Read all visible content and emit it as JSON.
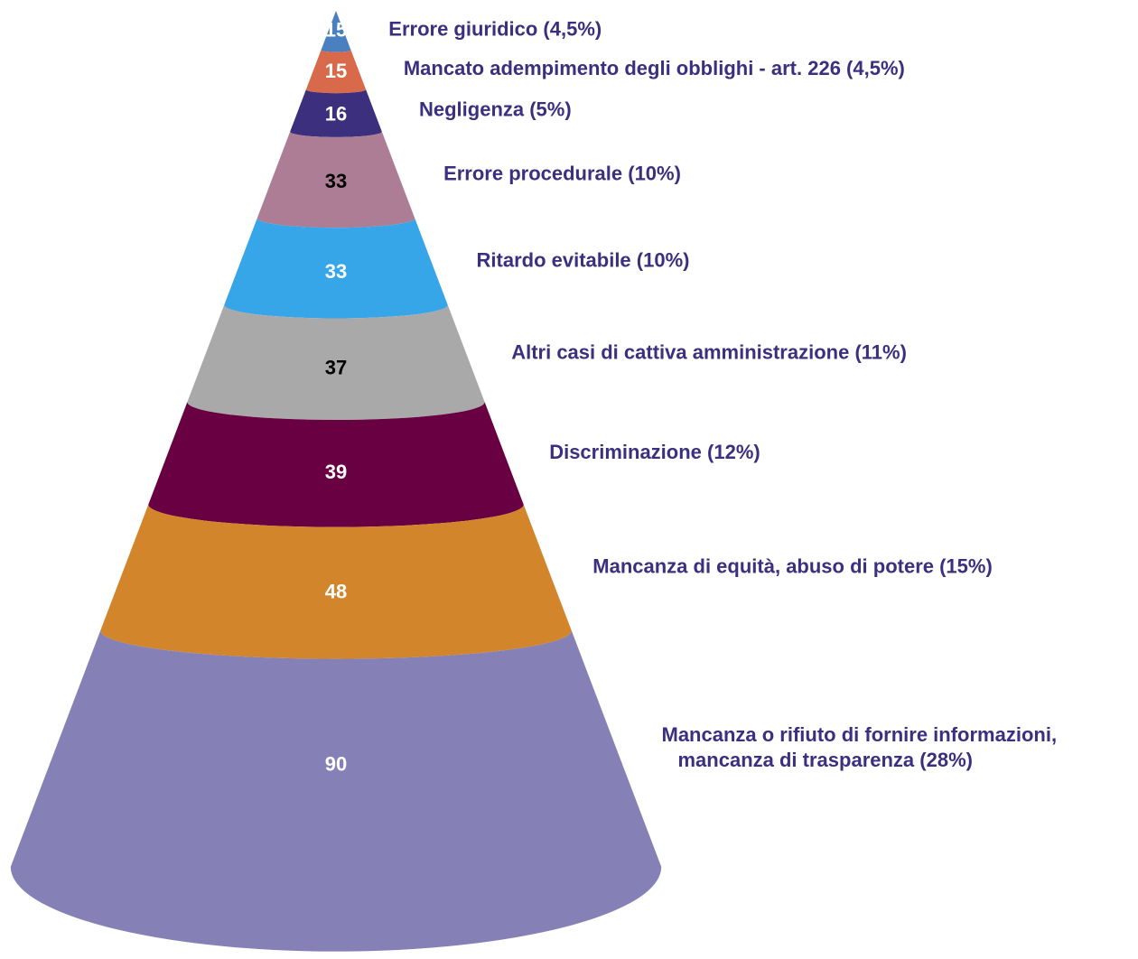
{
  "chart_data": {
    "type": "cone",
    "categories": [
      "Errore giuridico (4,5%)",
      "Mancato adempimento degli obblighi - art. 226 (4,5%)",
      "Negligenza (5%)",
      "Errore procedurale (10%)",
      "Ritardo evitabile (10%)",
      "Altri casi di cattiva amministrazione (11%)",
      "Discriminazione  (12%)",
      "Mancanza di equità, abuso di potere (15%)",
      [
        "Mancanza o rifiuto di fornire informazioni,",
        "mancanza di trasparenza (28%)"
      ]
    ],
    "values": [
      15,
      15,
      16,
      33,
      33,
      37,
      39,
      48,
      90
    ],
    "colors": [
      "#4a7fc0",
      "#d8694a",
      "#3b2f7e",
      "#ad7c95",
      "#37a6e8",
      "#a9a9a9",
      "#680042",
      "#d3852b",
      "#8580b6"
    ],
    "label_colors": [
      "#ffffff",
      "#ffffff",
      "#ffffff",
      "#000000",
      "#ffffff",
      "#000000",
      "#ffffff",
      "#ffffff",
      "#ffffff"
    ]
  }
}
